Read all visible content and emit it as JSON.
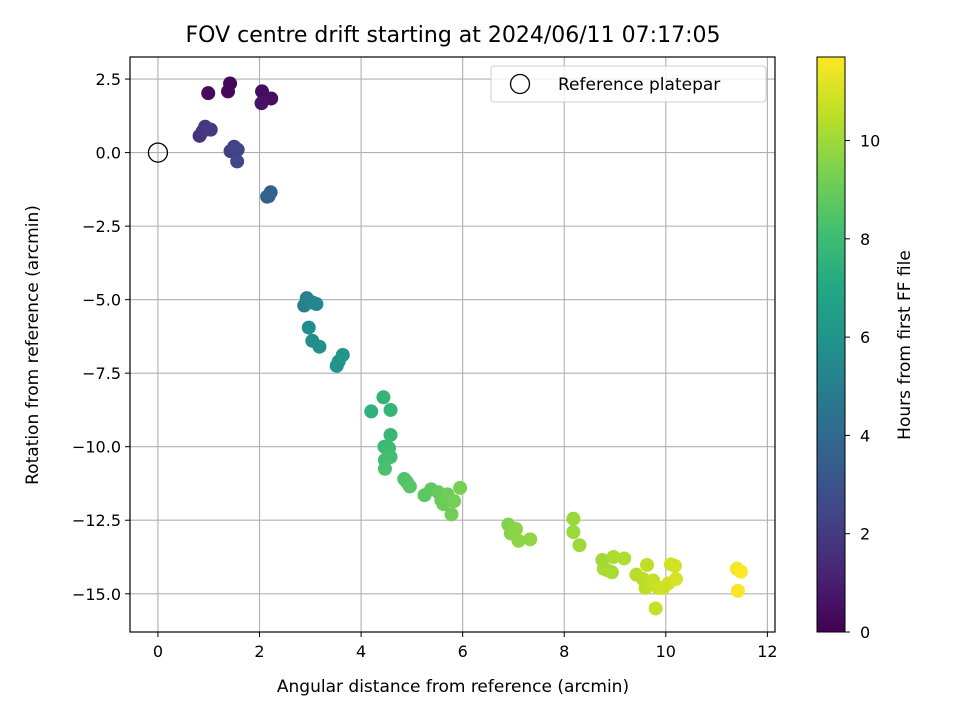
{
  "chart_data": {
    "type": "scatter",
    "title": "FOV centre drift starting at 2024/06/11 07:17:05",
    "xlabel": "Angular distance from reference (arcmin)",
    "ylabel": "Rotation from reference (arcmin)",
    "xlim": [
      -0.55,
      12.15
    ],
    "ylim": [
      -16.3,
      3.25
    ],
    "xticks": [
      0,
      2,
      4,
      6,
      8,
      10,
      12
    ],
    "xtick_labels": [
      "0",
      "2",
      "4",
      "6",
      "8",
      "10",
      "12"
    ],
    "yticks": [
      2.5,
      0,
      -2.5,
      -5,
      -7.5,
      -10,
      -12.5,
      -15
    ],
    "ytick_labels": [
      "2.5",
      "0.0",
      "−2.5",
      "−5.0",
      "−7.5",
      "−10.0",
      "−12.5",
      "−15.0"
    ],
    "grid": true,
    "legend": {
      "placement": "top-right",
      "entries": [
        "Reference platepar"
      ]
    },
    "reference_point": {
      "x": 0,
      "y": 0
    },
    "colorbar": {
      "label": "Hours from first FF file",
      "colormap": "viridis",
      "range": [
        0,
        11.7
      ],
      "ticks": [
        0,
        2,
        4,
        6,
        8,
        10
      ],
      "tick_labels": [
        "0",
        "2",
        "4",
        "6",
        "8",
        "10"
      ]
    },
    "series": [
      {
        "points": [
          [
            1.42,
            2.35,
            0.2
          ],
          [
            1.38,
            2.08,
            0.25
          ],
          [
            0.99,
            2.02,
            0.3
          ],
          [
            2.05,
            2.08,
            0.4
          ],
          [
            2.23,
            1.84,
            0.5
          ],
          [
            2.04,
            1.68,
            0.6
          ],
          [
            0.82,
            0.57,
            1.7
          ],
          [
            0.88,
            0.72,
            1.8
          ],
          [
            0.93,
            0.88,
            1.9
          ],
          [
            1.04,
            0.78,
            2.0
          ],
          [
            1.43,
            0.05,
            2.2
          ],
          [
            1.5,
            0.2,
            2.3
          ],
          [
            1.57,
            0.1,
            2.4
          ],
          [
            1.56,
            -0.3,
            2.5
          ],
          [
            2.15,
            -1.5,
            3.5
          ],
          [
            2.22,
            -1.35,
            3.6
          ],
          [
            2.18,
            -1.48,
            3.7
          ],
          [
            2.88,
            -5.2,
            5.0
          ],
          [
            2.93,
            -4.95,
            5.1
          ],
          [
            2.98,
            -5.05,
            5.2
          ],
          [
            3.05,
            -5.1,
            5.3
          ],
          [
            3.12,
            -5.15,
            5.4
          ],
          [
            2.97,
            -5.95,
            5.6
          ],
          [
            3.04,
            -6.4,
            5.7
          ],
          [
            3.18,
            -6.6,
            5.8
          ],
          [
            3.52,
            -7.25,
            5.9
          ],
          [
            3.56,
            -7.1,
            6.0
          ],
          [
            3.64,
            -6.88,
            6.1
          ],
          [
            4.2,
            -8.8,
            7.5
          ],
          [
            4.44,
            -8.32,
            7.6
          ],
          [
            4.58,
            -8.75,
            7.7
          ],
          [
            4.58,
            -9.6,
            7.8
          ],
          [
            4.46,
            -10.0,
            7.9
          ],
          [
            4.55,
            -10.05,
            8.0
          ],
          [
            4.47,
            -10.45,
            8.1
          ],
          [
            4.58,
            -10.35,
            8.2
          ],
          [
            4.47,
            -10.75,
            8.3
          ],
          [
            4.85,
            -11.1,
            8.4
          ],
          [
            4.9,
            -11.2,
            8.5
          ],
          [
            4.96,
            -11.35,
            8.6
          ],
          [
            5.25,
            -11.65,
            8.7
          ],
          [
            5.38,
            -11.45,
            8.8
          ],
          [
            5.52,
            -11.55,
            8.9
          ],
          [
            5.58,
            -11.82,
            9.0
          ],
          [
            5.62,
            -11.95,
            9.05
          ],
          [
            5.7,
            -11.62,
            9.1
          ],
          [
            5.78,
            -12.3,
            9.15
          ],
          [
            5.83,
            -11.85,
            9.2
          ],
          [
            5.95,
            -11.4,
            9.3
          ],
          [
            6.9,
            -12.65,
            9.5
          ],
          [
            6.95,
            -12.95,
            9.55
          ],
          [
            7.05,
            -12.8,
            9.6
          ],
          [
            7.02,
            -12.85,
            9.65
          ],
          [
            7.1,
            -13.2,
            9.7
          ],
          [
            7.33,
            -13.15,
            9.75
          ],
          [
            8.18,
            -12.45,
            9.9
          ],
          [
            8.18,
            -12.9,
            9.95
          ],
          [
            8.3,
            -13.35,
            10.0
          ],
          [
            8.75,
            -13.85,
            10.05
          ],
          [
            8.78,
            -14.15,
            10.1
          ],
          [
            8.85,
            -14.2,
            10.15
          ],
          [
            8.94,
            -14.27,
            10.2
          ],
          [
            8.97,
            -13.75,
            10.25
          ],
          [
            9.18,
            -13.8,
            10.3
          ],
          [
            9.42,
            -14.35,
            10.4
          ],
          [
            9.55,
            -14.5,
            10.45
          ],
          [
            9.6,
            -14.8,
            10.5
          ],
          [
            9.63,
            -14.02,
            10.55
          ],
          [
            9.68,
            -14.65,
            10.6
          ],
          [
            9.75,
            -14.55,
            10.65
          ],
          [
            9.8,
            -15.5,
            10.7
          ],
          [
            9.85,
            -14.8,
            10.75
          ],
          [
            9.95,
            -14.8,
            10.8
          ],
          [
            10.05,
            -14.65,
            10.85
          ],
          [
            10.1,
            -14.0,
            10.9
          ],
          [
            10.18,
            -14.05,
            10.95
          ],
          [
            10.2,
            -14.5,
            11.0
          ],
          [
            11.4,
            -14.15,
            11.55
          ],
          [
            11.42,
            -14.9,
            11.6
          ],
          [
            11.48,
            -14.25,
            11.65
          ]
        ]
      }
    ]
  }
}
